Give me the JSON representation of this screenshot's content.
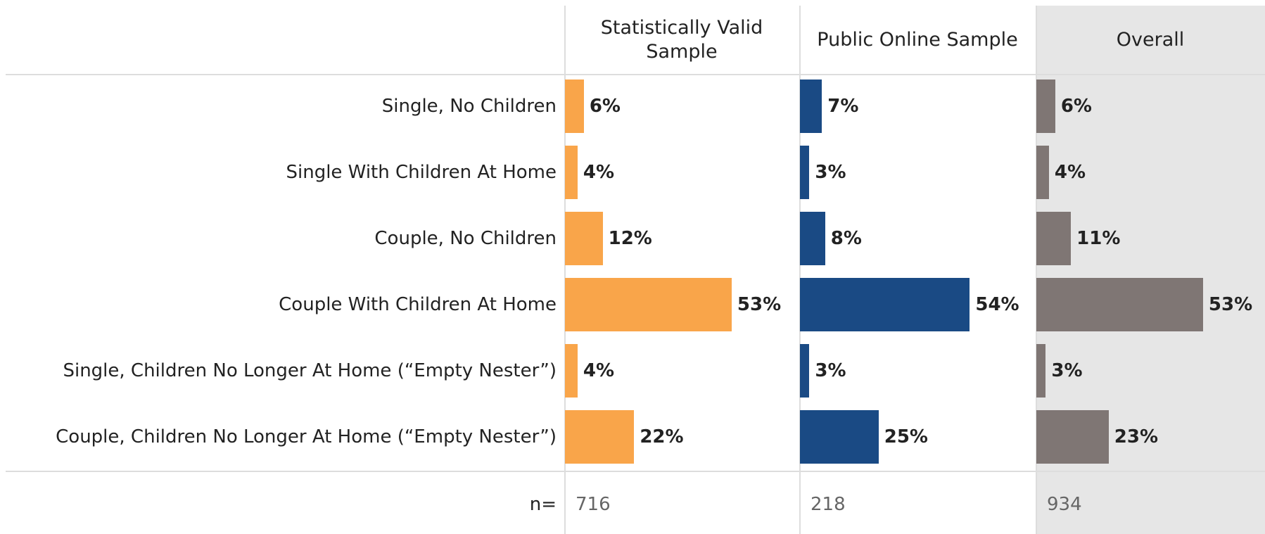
{
  "chart_data": {
    "type": "bar",
    "categories": [
      "Single, No Children",
      "Single With Children At Home",
      "Couple, No Children",
      "Couple With Children At Home",
      "Single, Children No Longer At Home (“Empty Nester”)",
      "Couple, Children No Longer At Home (“Empty Nester”)"
    ],
    "series": [
      {
        "name": "Statistically Valid Sample",
        "color": "#f9a54a",
        "values": [
          6,
          4,
          12,
          53,
          4,
          22
        ],
        "value_labels": [
          "6%",
          "4%",
          "12%",
          "53%",
          "4%",
          "22%"
        ],
        "n": 716
      },
      {
        "name": "Public Online Sample",
        "color": "#1a4a84",
        "values": [
          7,
          3,
          8,
          54,
          3,
          25
        ],
        "value_labels": [
          "7%",
          "3%",
          "8%",
          "54%",
          "3%",
          "25%"
        ],
        "n": 218
      },
      {
        "name": "Overall",
        "color": "#7f7674",
        "values": [
          6,
          4,
          11,
          53,
          3,
          23
        ],
        "value_labels": [
          "6%",
          "4%",
          "11%",
          "53%",
          "3%",
          "23%"
        ],
        "n": 934
      }
    ],
    "n_label": "n="
  }
}
